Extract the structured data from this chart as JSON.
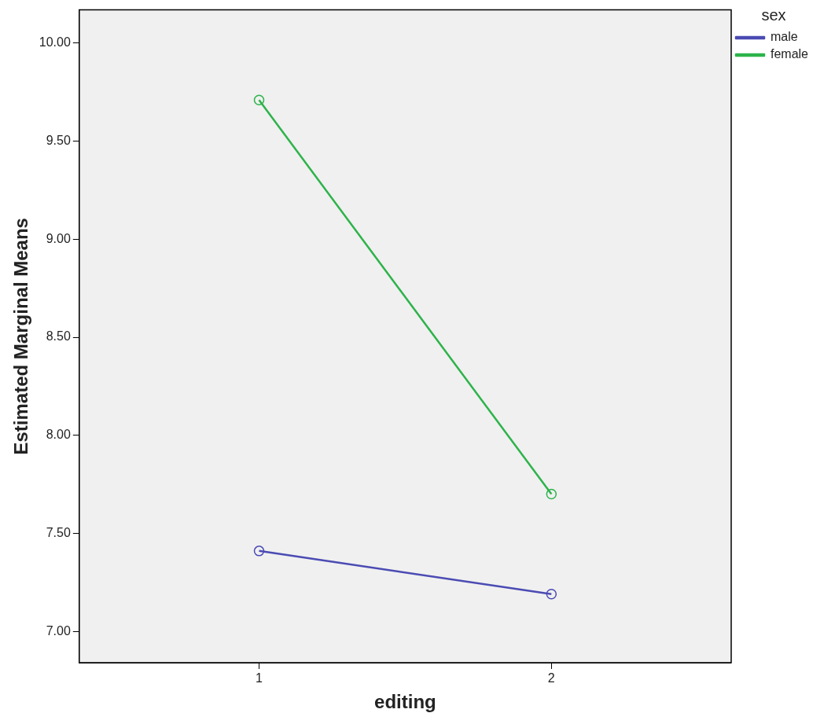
{
  "chart_data": {
    "type": "line",
    "xlabel": "editing",
    "ylabel": "Estimated Marginal Means",
    "legend_title": "sex",
    "categories": [
      "1",
      "2"
    ],
    "series": [
      {
        "name": "male",
        "color": "#4b4bb4",
        "values": [
          7.41,
          7.19
        ]
      },
      {
        "name": "female",
        "color": "#2db34a",
        "values": [
          9.71,
          7.7
        ]
      }
    ],
    "ylim": [
      6.84,
      10.17
    ],
    "yticks": [
      {
        "value": 7,
        "label": "7.00"
      },
      {
        "value": 7.5,
        "label": "7.50"
      },
      {
        "value": 8,
        "label": "8.00"
      },
      {
        "value": 8.5,
        "label": "8.50"
      },
      {
        "value": 9,
        "label": "9.00"
      },
      {
        "value": 9.5,
        "label": "9.50"
      },
      {
        "value": 10,
        "label": "10.00"
      }
    ],
    "grid": false,
    "legend": "top right",
    "marker": "circle",
    "line_style": "solid"
  }
}
